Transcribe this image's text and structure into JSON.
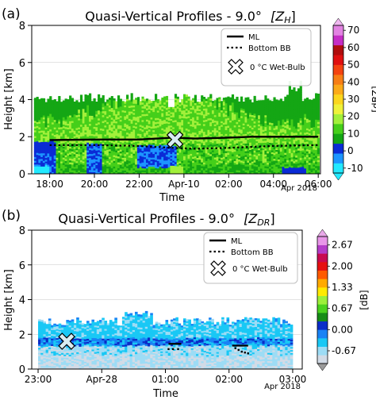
{
  "chart_data": [
    {
      "panel_label": "(a)",
      "type": "heatmap",
      "title_main": "Quasi-Vertical Profiles - 9.0°",
      "title_var": "[Z",
      "title_sub": "H",
      "title_close": "]",
      "ylabel": "Height [km]",
      "xlabel": "Time",
      "xaxis_note": "Apr 2018",
      "ylim": [
        0,
        8
      ],
      "yticks": [
        "0",
        "2",
        "4",
        "6",
        "8"
      ],
      "xlim": [
        17.2,
        30.1
      ],
      "xticks": [
        {
          "x": 18,
          "label": "18:00"
        },
        {
          "x": 20,
          "label": "20:00"
        },
        {
          "x": 22,
          "label": "22:00"
        },
        {
          "x": 24,
          "label": "Apr-10"
        },
        {
          "x": 26,
          "label": "02:00"
        },
        {
          "x": 28,
          "label": "04:00"
        },
        {
          "x": 30,
          "label": "06:00"
        }
      ],
      "colorbar": {
        "label": "[dBZ]",
        "ticks": [
          "-10",
          "0",
          "10",
          "20",
          "30",
          "40",
          "50",
          "60",
          "70"
        ],
        "colors": [
          "#23e9ff",
          "#1c95ff",
          "#0a2bd6",
          "#14a614",
          "#45cf1a",
          "#a2f03a",
          "#eff23a",
          "#fbd61e",
          "#fbaa19",
          "#f77e15",
          "#f44310",
          "#e01010",
          "#b00d0d",
          "#c52dc5",
          "#e283e2"
        ]
      },
      "legend": {
        "ml": "ML",
        "bottom_bb": "Bottom BB",
        "wet_bulb": "0 °C Wet-Bulb"
      },
      "ml_line": {
        "x": [
          18,
          20,
          22,
          23.5,
          24.5,
          26,
          27,
          28,
          30
        ],
        "y": [
          1.82,
          1.85,
          1.85,
          1.95,
          1.9,
          1.95,
          2.0,
          2.0,
          2.0
        ]
      },
      "bb_line": {
        "x": [
          18,
          20,
          22,
          23.5,
          24.5,
          26,
          27,
          28,
          30
        ],
        "y": [
          1.55,
          1.55,
          1.5,
          1.4,
          1.35,
          1.4,
          1.45,
          1.5,
          1.55
        ]
      },
      "wet_bulb_marker": {
        "x": 23.6,
        "y": 1.85
      }
    },
    {
      "panel_label": "(b)",
      "type": "heatmap",
      "title_main": "Quasi-Vertical Profiles - 9.0°",
      "title_var": "[Z",
      "title_sub": "DR",
      "title_close": "]",
      "ylabel": "Height [km]",
      "xlabel": "Time",
      "xaxis_note": "Apr 2018",
      "ylim": [
        0,
        8
      ],
      "yticks": [
        "0",
        "2",
        "4",
        "6",
        "8"
      ],
      "xlim": [
        22.9,
        27.15
      ],
      "xticks": [
        {
          "x": 23,
          "label": "23:00"
        },
        {
          "x": 24,
          "label": "Apr-28"
        },
        {
          "x": 25,
          "label": "01:00"
        },
        {
          "x": 26,
          "label": "02:00"
        },
        {
          "x": 27,
          "label": "03:00"
        }
      ],
      "colorbar": {
        "label": "[dB]",
        "ticks": [
          "-0.67",
          "0.00",
          "0.67",
          "1.33",
          "2.00",
          "2.67"
        ],
        "colors": [
          "#d2dbe6",
          "#9ddcf5",
          "#19c8f5",
          "#1983f5",
          "#0b2dc8",
          "#168c16",
          "#4ad21e",
          "#9cef3a",
          "#ffea00",
          "#ffaa00",
          "#ff5a00",
          "#e61010",
          "#c80a50",
          "#b43cc8",
          "#e896e8"
        ]
      },
      "legend": {
        "ml": "ML",
        "bottom_bb": "Bottom BB",
        "wet_bulb": "0 °C Wet-Bulb"
      },
      "ml_segments": [
        {
          "x": [
            25.05,
            25.25
          ],
          "y": [
            1.45,
            1.45
          ]
        },
        {
          "x": [
            26.05,
            26.3
          ],
          "y": [
            1.35,
            1.35
          ]
        }
      ],
      "bb_points": {
        "x": [
          25.05,
          25.12,
          25.2,
          26.1,
          26.15,
          26.2,
          26.25,
          26.3
        ],
        "y": [
          1.15,
          1.15,
          1.15,
          1.2,
          1.1,
          1.0,
          0.95,
          0.9
        ]
      },
      "wet_bulb_marker": {
        "x": 23.45,
        "y": 1.6
      }
    }
  ]
}
